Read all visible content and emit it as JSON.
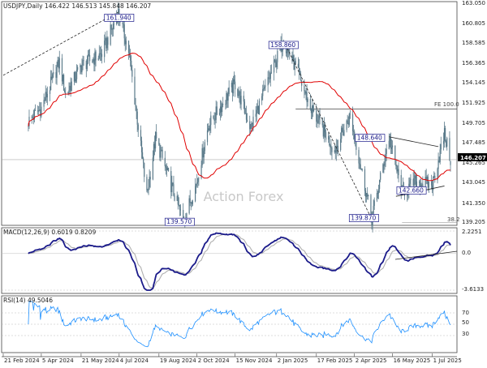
{
  "chart_data": [
    {
      "type": "candlestick",
      "panel": "price",
      "header_text": "USDJPY,Daily  146.422 146.513 145.848 146.207",
      "symbol": "USDJPY",
      "timeframe": "Daily",
      "ohlc_last": {
        "open": 146.422,
        "high": 146.513,
        "low": 145.848,
        "close": 146.207
      },
      "current_price": 146.207,
      "y_ticks": [
        "163.050",
        "160.805",
        "158.585",
        "156.365",
        "154.145",
        "151.925",
        "149.705",
        "147.485",
        "145.265",
        "143.045",
        "141.350",
        "139.205"
      ],
      "ylim": [
        139.205,
        163.05
      ],
      "swing_labels": [
        "161.940",
        "158.860",
        "139.570",
        "148.640",
        "142.660",
        "139.870"
      ],
      "fe_label": "FE 100.0",
      "fib_level_label": "38.2",
      "watermark": "Action Forex",
      "ma_color": "#e00000",
      "candle_color": "#5a7a8a",
      "anchors": [
        {
          "date": "2024-03-21",
          "close": 150.3
        },
        {
          "date": "2024-04-05",
          "close": 151.7
        },
        {
          "date": "2024-04-26",
          "close": 156.6
        },
        {
          "date": "2024-05-03",
          "close": 153.1
        },
        {
          "date": "2024-05-21",
          "close": 156.2
        },
        {
          "date": "2024-06-14",
          "close": 157.5
        },
        {
          "date": "2024-07-03",
          "close": 161.9
        },
        {
          "date": "2024-07-15",
          "close": 157.8
        },
        {
          "date": "2024-08-05",
          "close": 142.4
        },
        {
          "date": "2024-08-15",
          "close": 148.5
        },
        {
          "date": "2024-09-16",
          "close": 139.6
        },
        {
          "date": "2024-10-01",
          "close": 143.6
        },
        {
          "date": "2024-10-15",
          "close": 149.8
        },
        {
          "date": "2024-11-15",
          "close": 154.3
        },
        {
          "date": "2024-12-03",
          "close": 149.6
        },
        {
          "date": "2025-01-10",
          "close": 158.9
        },
        {
          "date": "2025-01-24",
          "close": 156.0
        },
        {
          "date": "2025-02-10",
          "close": 151.8
        },
        {
          "date": "2025-03-10",
          "close": 147.2
        },
        {
          "date": "2025-03-28",
          "close": 150.9
        },
        {
          "date": "2025-04-22",
          "close": 139.9
        },
        {
          "date": "2025-05-12",
          "close": 148.6
        },
        {
          "date": "2025-05-27",
          "close": 142.7
        },
        {
          "date": "2025-06-12",
          "close": 143.9
        },
        {
          "date": "2025-07-01",
          "close": 143.5
        },
        {
          "date": "2025-07-15",
          "close": 148.9
        },
        {
          "date": "2025-07-22",
          "close": 146.2
        }
      ]
    },
    {
      "type": "line",
      "panel": "macd",
      "header_text": "MACD(12,26,9) 0.6019 0.8209",
      "indicator": "MACD(12,26,9)",
      "values": {
        "macd": 0.6019,
        "signal": 0.8209
      },
      "y_ticks": [
        "2.2251",
        "0.0",
        "-3.6133"
      ],
      "ylim": [
        -3.6133,
        2.2251
      ],
      "macd_color": "#1a1a8a",
      "signal_color": "#b0b0b0"
    },
    {
      "type": "line",
      "panel": "rsi",
      "header_text": "RSI(14) 49.5046",
      "indicator": "RSI(14)",
      "value": 49.5046,
      "y_ticks": [
        "70",
        "50",
        "30"
      ],
      "ylim": [
        0,
        100
      ],
      "line_color": "#1e90ff"
    },
    {
      "type": "axis",
      "panel": "time",
      "x_labels": [
        {
          "date": "2024-02-21",
          "text": "21 Feb 2024"
        },
        {
          "date": "2024-04-05",
          "text": "5 Apr 2024"
        },
        {
          "date": "2024-05-21",
          "text": "21 May 2024"
        },
        {
          "date": "2024-07-04",
          "text": "4 Jul 2024"
        },
        {
          "date": "2024-08-19",
          "text": "19 Aug 2024"
        },
        {
          "date": "2024-10-02",
          "text": "2 Oct 2024"
        },
        {
          "date": "2024-11-15",
          "text": "15 Nov 2024"
        },
        {
          "date": "2025-01-02",
          "text": "2 Jan 2025"
        },
        {
          "date": "2025-02-17",
          "text": "17 Feb 2025"
        },
        {
          "date": "2025-04-02",
          "text": "2 Apr 2025"
        },
        {
          "date": "2025-05-16",
          "text": "16 May 2025"
        },
        {
          "date": "2025-07-01",
          "text": "1 Jul 2025"
        }
      ],
      "range": [
        "2024-02-21",
        "2025-07-22"
      ]
    }
  ]
}
